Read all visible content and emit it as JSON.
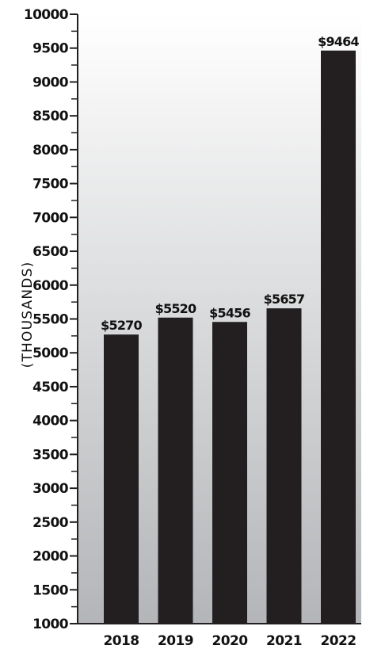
{
  "chart_data": {
    "type": "bar",
    "title": "",
    "xlabel": "",
    "ylabel": "(THOUSANDS)",
    "categories": [
      "2018",
      "2019",
      "2020",
      "2021",
      "2022"
    ],
    "values": [
      5270,
      5520,
      5456,
      5657,
      9464
    ],
    "data_labels": [
      "$5270",
      "$5520",
      "$5456",
      "$5657",
      "$9464"
    ],
    "ylim": [
      1000,
      10000
    ],
    "y_ticks": [
      "1000",
      "1500",
      "2000",
      "2500",
      "3000",
      "3500",
      "4000",
      "4500",
      "5000",
      "5500",
      "6000",
      "6500",
      "7000",
      "7500",
      "8000",
      "8500",
      "9000",
      "9500",
      "10000"
    ],
    "grid": false,
    "legend": "none",
    "colors": {
      "bar": "#231f20",
      "background_top": "#ffffff",
      "background_bottom": "#b3b5b8",
      "axis": "#231f20"
    }
  }
}
